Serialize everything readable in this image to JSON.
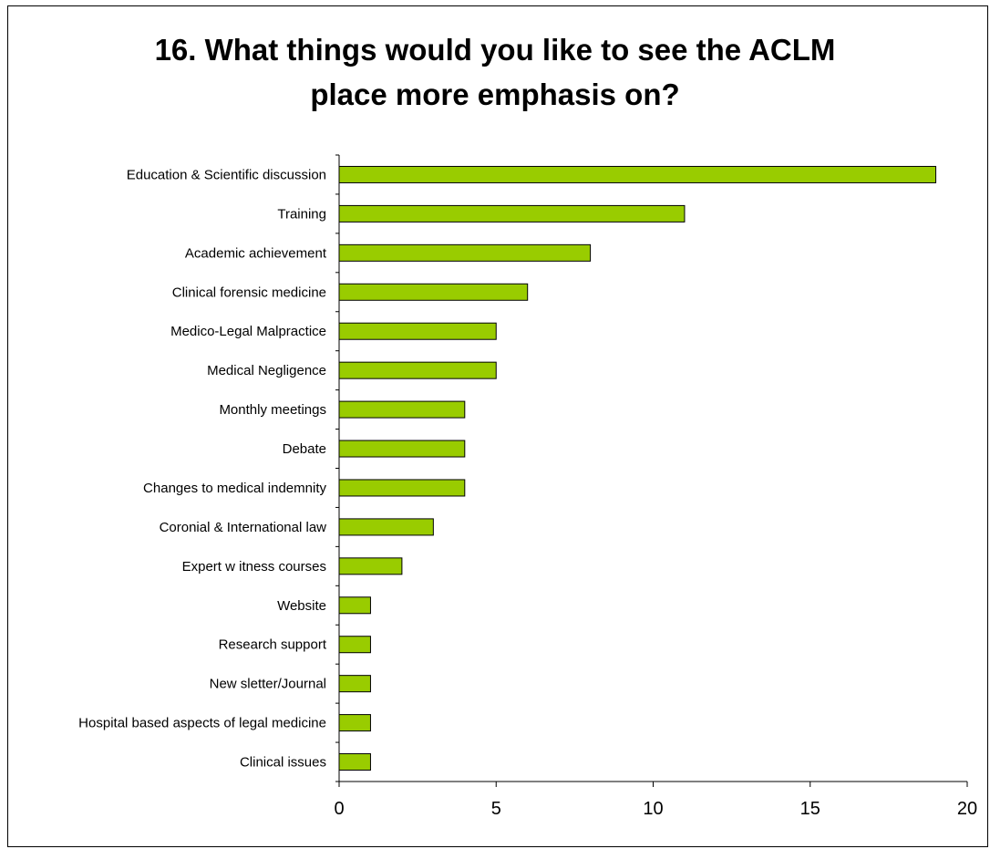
{
  "chart_data": {
    "type": "bar",
    "orientation": "horizontal",
    "title_line1": "16. What things would you like to see the ACLM",
    "title_line2": "place more emphasis on?",
    "categories": [
      "Education & Scientific discussion",
      "Training",
      "Academic achievement",
      "Clinical forensic medicine",
      "Medico-Legal Malpractice",
      "Medical Negligence",
      "Monthly meetings",
      "Debate",
      "Changes to medical indemnity",
      "Coronial & International law",
      "Expert w itness courses",
      "Website",
      "Research support",
      "New sletter/Journal",
      "Hospital based aspects of legal medicine",
      "Clinical issues"
    ],
    "values": [
      19,
      11,
      8,
      6,
      5,
      5,
      4,
      4,
      4,
      3,
      2,
      1,
      1,
      1,
      1,
      1
    ],
    "xlim": [
      0,
      20
    ],
    "xticks": [
      "0",
      "5",
      "10",
      "15",
      "20"
    ],
    "bar_color": "#99cc00",
    "bar_border": "#000000",
    "grid": false,
    "legend": "none"
  }
}
